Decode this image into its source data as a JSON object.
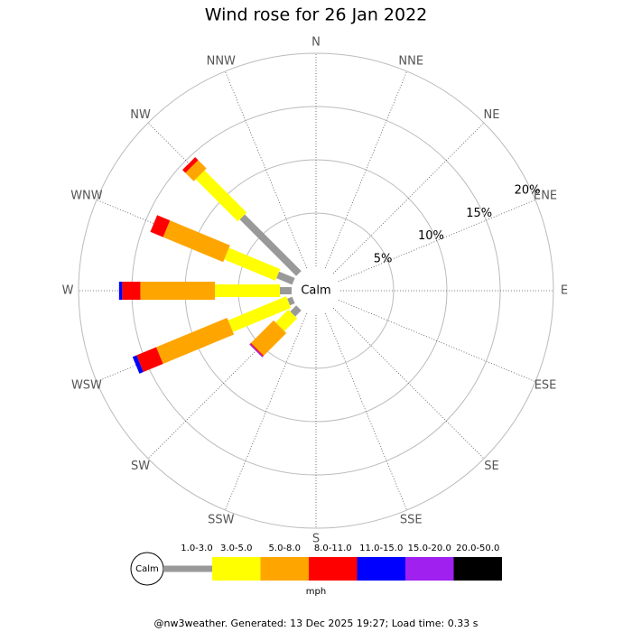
{
  "chart_data": {
    "type": "wind-rose",
    "title": "Wind rose for 26 Jan 2022",
    "directions": [
      "N",
      "NNE",
      "NE",
      "ENE",
      "E",
      "ESE",
      "SE",
      "SSE",
      "S",
      "SSW",
      "SW",
      "WSW",
      "W",
      "WNW",
      "NW",
      "NNW"
    ],
    "center_label": "Calm",
    "rlim": [
      0,
      20
    ],
    "rticks": [
      {
        "value": 5,
        "label": "5%"
      },
      {
        "value": 10,
        "label": "10%"
      },
      {
        "value": 15,
        "label": "15%"
      },
      {
        "value": 20,
        "label": "20%"
      }
    ],
    "series": [
      {
        "name": "1.0-3.0",
        "color": "#999999",
        "values": [
          0,
          0,
          0,
          0,
          0,
          0,
          0,
          0,
          0,
          0,
          0.8,
          0.5,
          1.1,
          1.6,
          7.5,
          0
        ]
      },
      {
        "name": "3.0-5.0",
        "color": "#ffff00",
        "values": [
          0,
          0,
          0,
          0,
          0,
          0,
          0,
          0,
          0,
          0,
          1.7,
          5.9,
          6.1,
          5.2,
          5.6,
          0
        ]
      },
      {
        "name": "5.0-8.0",
        "color": "#ffa500",
        "values": [
          0,
          0,
          0,
          0,
          0,
          0,
          0,
          0,
          0,
          0,
          3.0,
          7.2,
          7.0,
          6.1,
          1.1,
          0
        ]
      },
      {
        "name": "8.0-11.0",
        "color": "#ff0000",
        "values": [
          0,
          0,
          0,
          0,
          0,
          0,
          0,
          0,
          0,
          0,
          0.1,
          2.0,
          1.7,
          1.3,
          0.4,
          0
        ]
      },
      {
        "name": "11.0-15.0",
        "color": "#0000ff",
        "values": [
          0,
          0,
          0,
          0,
          0,
          0,
          0,
          0,
          0,
          0,
          0,
          0.4,
          0.3,
          0,
          0,
          0
        ]
      },
      {
        "name": "15.0-20.0",
        "color": "#a020f0",
        "values": [
          0,
          0,
          0,
          0,
          0,
          0,
          0,
          0,
          0,
          0,
          0.1,
          0,
          0,
          0,
          0,
          0
        ]
      },
      {
        "name": "20.0-50.0",
        "color": "#000000",
        "values": [
          0,
          0,
          0,
          0,
          0,
          0,
          0,
          0,
          0,
          0,
          0,
          0,
          0,
          0,
          0,
          0
        ]
      }
    ],
    "legend_unit": "mph",
    "footer": "@nw3weather. Generated: 13 Dec 2025 19:27; Load time: 0.33 s"
  }
}
